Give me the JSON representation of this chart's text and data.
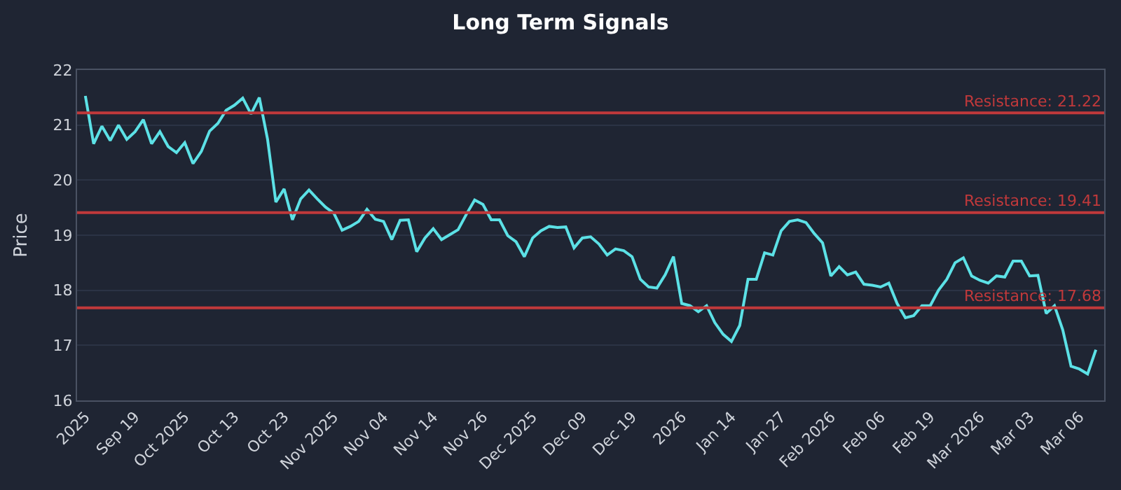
{
  "chart_data": {
    "type": "line",
    "title": "Long Term Signals",
    "ylabel": "Price",
    "categories": [
      "2025",
      null,
      null,
      null,
      null,
      null,
      "Sep 19",
      null,
      null,
      null,
      null,
      null,
      "Oct 2025",
      null,
      null,
      null,
      null,
      null,
      "Oct 13",
      null,
      null,
      null,
      null,
      null,
      "Oct 23",
      null,
      null,
      null,
      null,
      null,
      "Nov 2025",
      null,
      null,
      null,
      null,
      null,
      "Nov 04",
      null,
      null,
      null,
      null,
      null,
      "Nov 14",
      null,
      null,
      null,
      null,
      null,
      "Nov 26",
      null,
      null,
      null,
      null,
      null,
      "Dec 2025",
      null,
      null,
      null,
      null,
      null,
      "Dec 09",
      null,
      null,
      null,
      null,
      null,
      "Dec 19",
      null,
      null,
      null,
      null,
      null,
      "2026",
      null,
      null,
      null,
      null,
      null,
      "Jan 14",
      null,
      null,
      null,
      null,
      null,
      "Jan 27",
      null,
      null,
      null,
      null,
      null,
      "Feb 2026",
      null,
      null,
      null,
      null,
      null,
      "Feb 06",
      null,
      null,
      null,
      null,
      null,
      "Feb 19",
      null,
      null,
      null,
      null,
      null,
      "Mar 2026",
      null,
      null,
      null,
      null,
      null,
      "Mar 03",
      null,
      null,
      null,
      null,
      null,
      "Mar 06",
      null,
      null
    ],
    "series": [
      {
        "color": "#5ce1e6",
        "values": [
          21.53,
          20.66,
          20.98,
          20.72,
          21.0,
          20.74,
          20.88,
          21.1,
          20.66,
          20.88,
          20.61,
          20.5,
          20.68,
          20.3,
          20.52,
          20.89,
          21.03,
          21.27,
          21.36,
          21.49,
          21.2,
          21.5,
          20.74,
          19.6,
          19.84,
          19.28,
          19.66,
          19.82,
          19.66,
          19.51,
          19.4,
          19.09,
          19.16,
          19.25,
          19.47,
          19.29,
          19.25,
          18.92,
          19.27,
          19.28,
          18.7,
          18.95,
          19.12,
          18.92,
          19.01,
          19.1,
          19.38,
          19.64,
          19.56,
          19.28,
          19.28,
          18.99,
          18.88,
          18.61,
          18.95,
          19.08,
          19.16,
          19.14,
          19.15,
          18.77,
          18.95,
          18.97,
          18.84,
          18.64,
          18.75,
          18.72,
          18.61,
          18.2,
          18.06,
          18.04,
          18.28,
          18.61,
          17.76,
          17.72,
          17.61,
          17.72,
          17.41,
          17.2,
          17.07,
          17.36,
          18.2,
          18.2,
          18.68,
          18.64,
          19.08,
          19.25,
          19.28,
          19.23,
          19.03,
          18.86,
          18.26,
          18.43,
          18.28,
          18.33,
          18.11,
          18.09,
          18.06,
          18.13,
          17.76,
          17.5,
          17.54,
          17.72,
          17.72,
          18.0,
          18.2,
          18.5,
          18.59,
          18.26,
          18.18,
          18.13,
          18.26,
          18.24,
          18.53,
          18.53,
          18.26,
          18.27,
          17.58,
          17.72,
          17.28,
          16.62,
          16.57,
          16.48,
          16.92
        ]
      }
    ],
    "ylim": [
      16,
      22
    ],
    "yticks": [
      16,
      17,
      18,
      19,
      20,
      21,
      22
    ],
    "grid": "y",
    "marker": "none",
    "line_style": "solid",
    "ref_lines": [
      {
        "axis": "y",
        "value": 21.22,
        "label": "Resistance: 21.22",
        "color": "#c0393b"
      },
      {
        "axis": "y",
        "value": 19.41,
        "label": "Resistance: 19.41",
        "color": "#c0393b"
      },
      {
        "axis": "y",
        "value": 17.68,
        "label": "Resistance: 17.68",
        "color": "#c0393b"
      }
    ]
  }
}
